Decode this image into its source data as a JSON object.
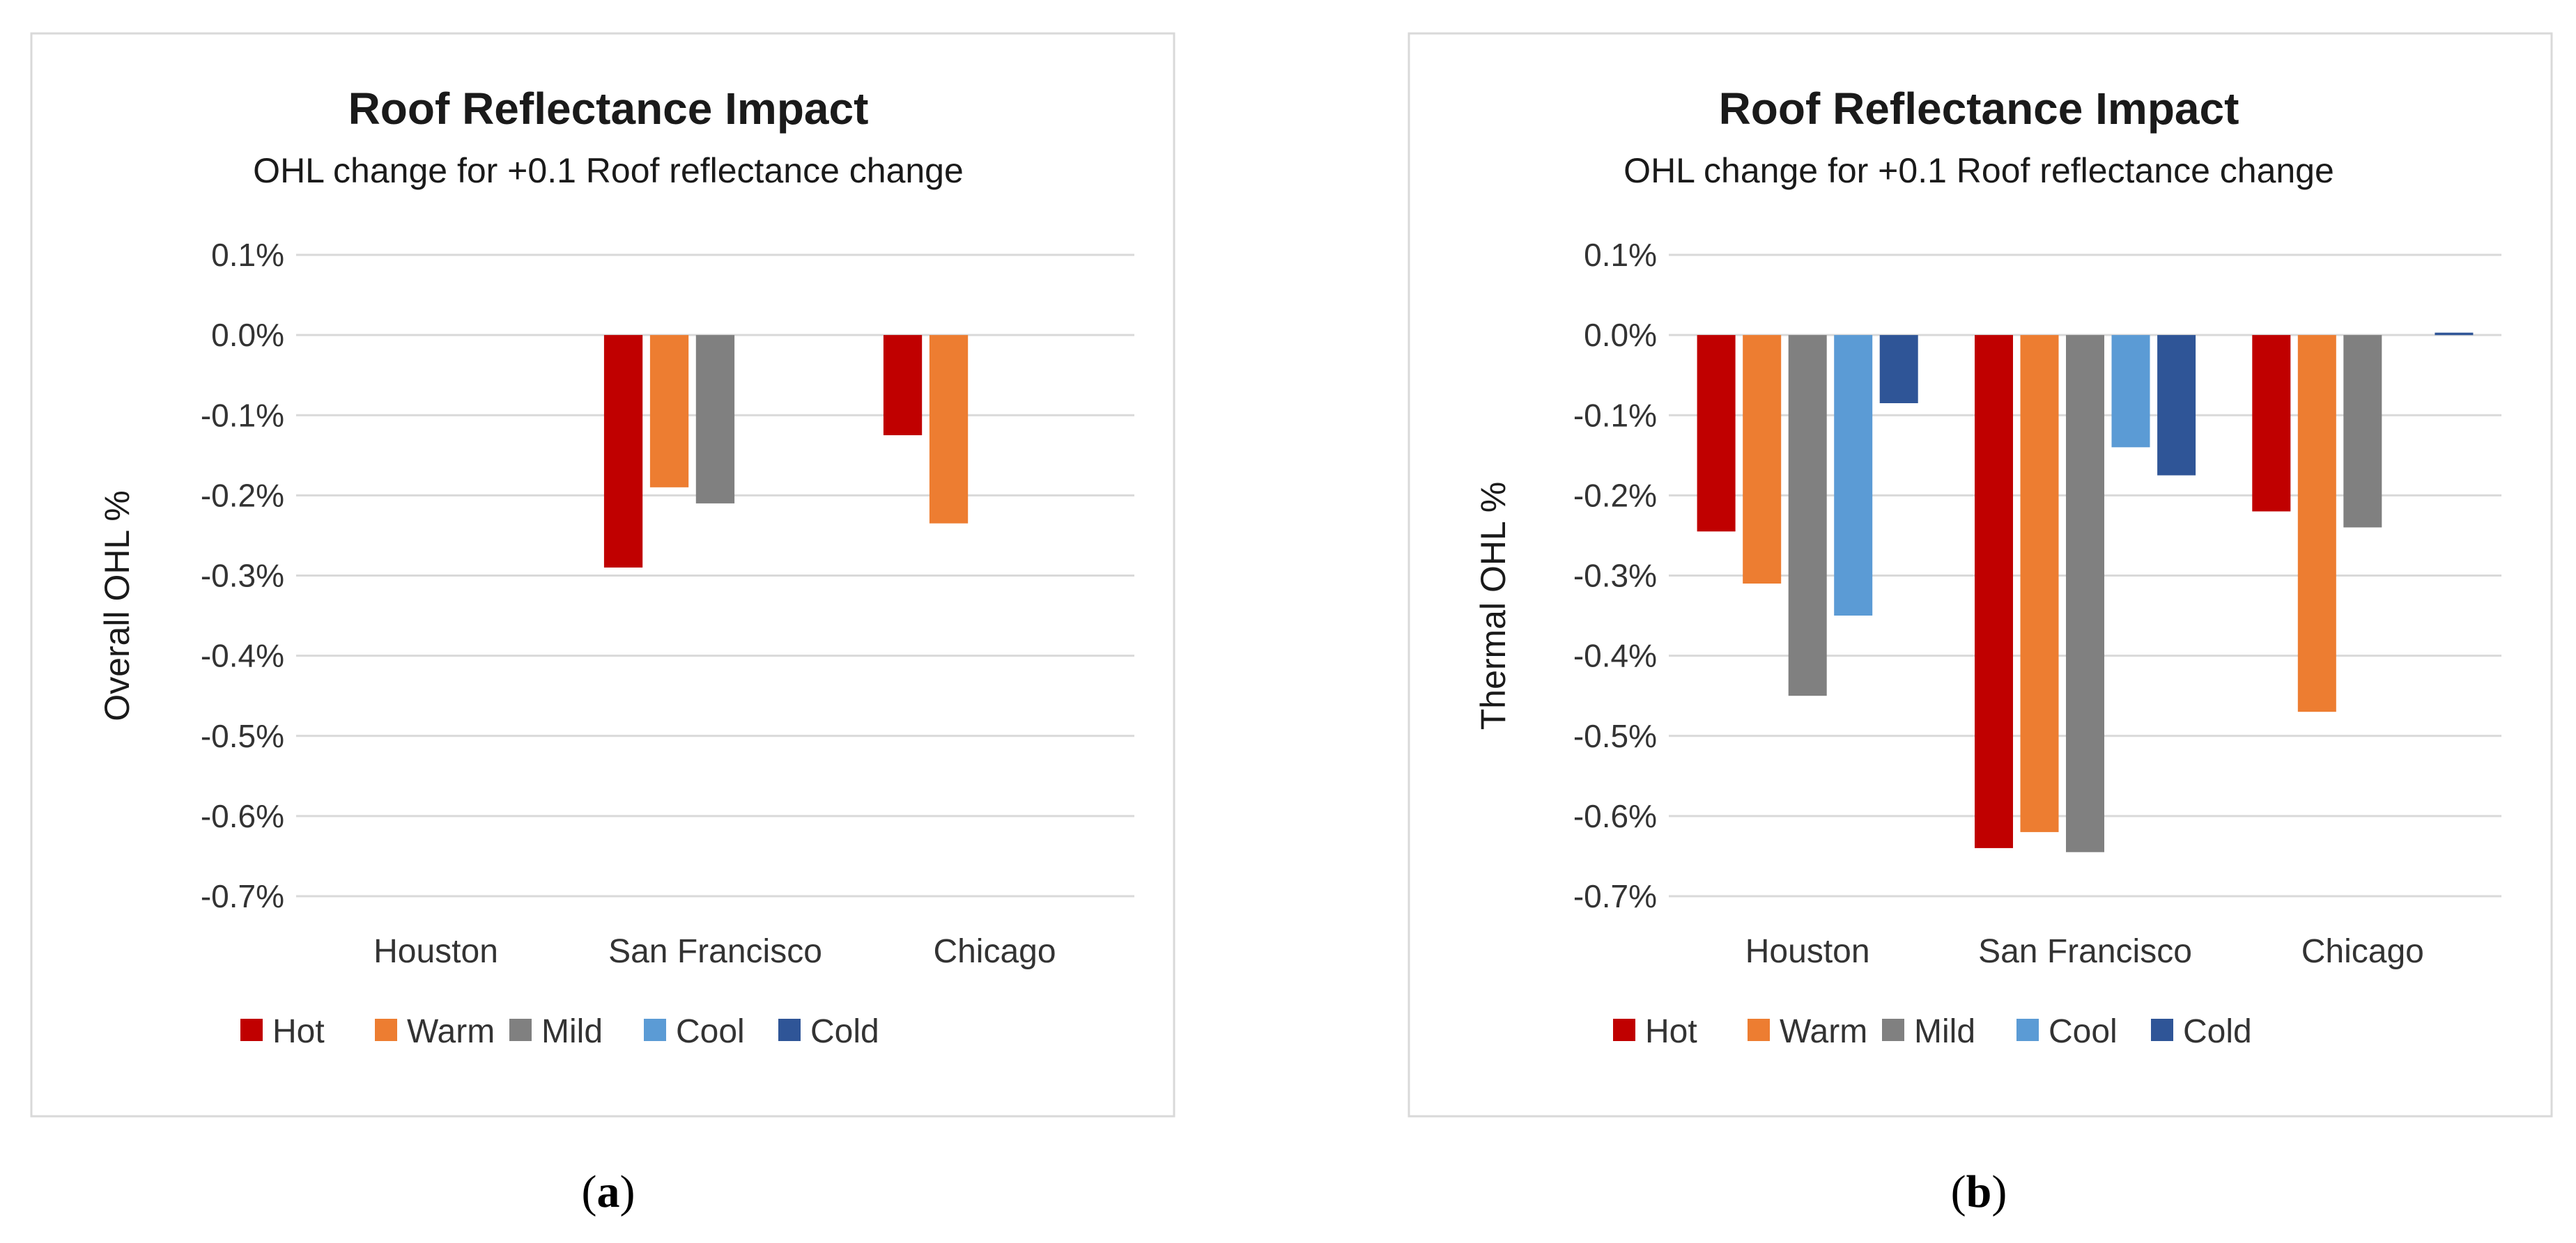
{
  "chart_data": [
    {
      "panel_label": "a",
      "type": "bar",
      "title": "Roof Reflectance Impact",
      "subtitle": "OHL change for +0.1 Roof reflectance change",
      "ylabel": "Overall OHL %",
      "xlabel": "",
      "ylim": [
        -0.7,
        0.1
      ],
      "yticks": [
        "0.1%",
        "0.0%",
        "-0.1%",
        "-0.2%",
        "-0.3%",
        "-0.4%",
        "-0.5%",
        "-0.6%",
        "-0.7%"
      ],
      "grid": true,
      "legend_position": "bottom",
      "categories": [
        "Houston",
        "San Francisco",
        "Chicago"
      ],
      "series": [
        {
          "name": "Hot",
          "color": "#c00000",
          "values": [
            0,
            -0.29,
            -0.125
          ]
        },
        {
          "name": "Warm",
          "color": "#ed7d31",
          "values": [
            0,
            -0.19,
            -0.235
          ]
        },
        {
          "name": "Mild",
          "color": "#808080",
          "values": [
            0,
            -0.21,
            0
          ]
        },
        {
          "name": "Cool",
          "color": "#5b9bd5",
          "values": [
            0,
            0,
            0
          ]
        },
        {
          "name": "Cold",
          "color": "#2f5597",
          "values": [
            0,
            0,
            0
          ]
        }
      ]
    },
    {
      "panel_label": "b",
      "type": "bar",
      "title": "Roof Reflectance Impact",
      "subtitle": "OHL change for +0.1 Roof reflectance change",
      "ylabel": "Thermal OHL %",
      "xlabel": "",
      "ylim": [
        -0.7,
        0.1
      ],
      "yticks": [
        "0.1%",
        "0.0%",
        "-0.1%",
        "-0.2%",
        "-0.3%",
        "-0.4%",
        "-0.5%",
        "-0.6%",
        "-0.7%"
      ],
      "grid": true,
      "legend_position": "bottom",
      "categories": [
        "Houston",
        "San Francisco",
        "Chicago"
      ],
      "series": [
        {
          "name": "Hot",
          "color": "#c00000",
          "values": [
            -0.245,
            -0.64,
            -0.22
          ]
        },
        {
          "name": "Warm",
          "color": "#ed7d31",
          "values": [
            -0.31,
            -0.62,
            -0.47
          ]
        },
        {
          "name": "Mild",
          "color": "#808080",
          "values": [
            -0.45,
            -0.645,
            -0.24
          ]
        },
        {
          "name": "Cool",
          "color": "#5b9bd5",
          "values": [
            -0.35,
            -0.14,
            0
          ]
        },
        {
          "name": "Cold",
          "color": "#2f5597",
          "values": [
            -0.085,
            -0.175,
            0.003
          ]
        }
      ]
    }
  ]
}
